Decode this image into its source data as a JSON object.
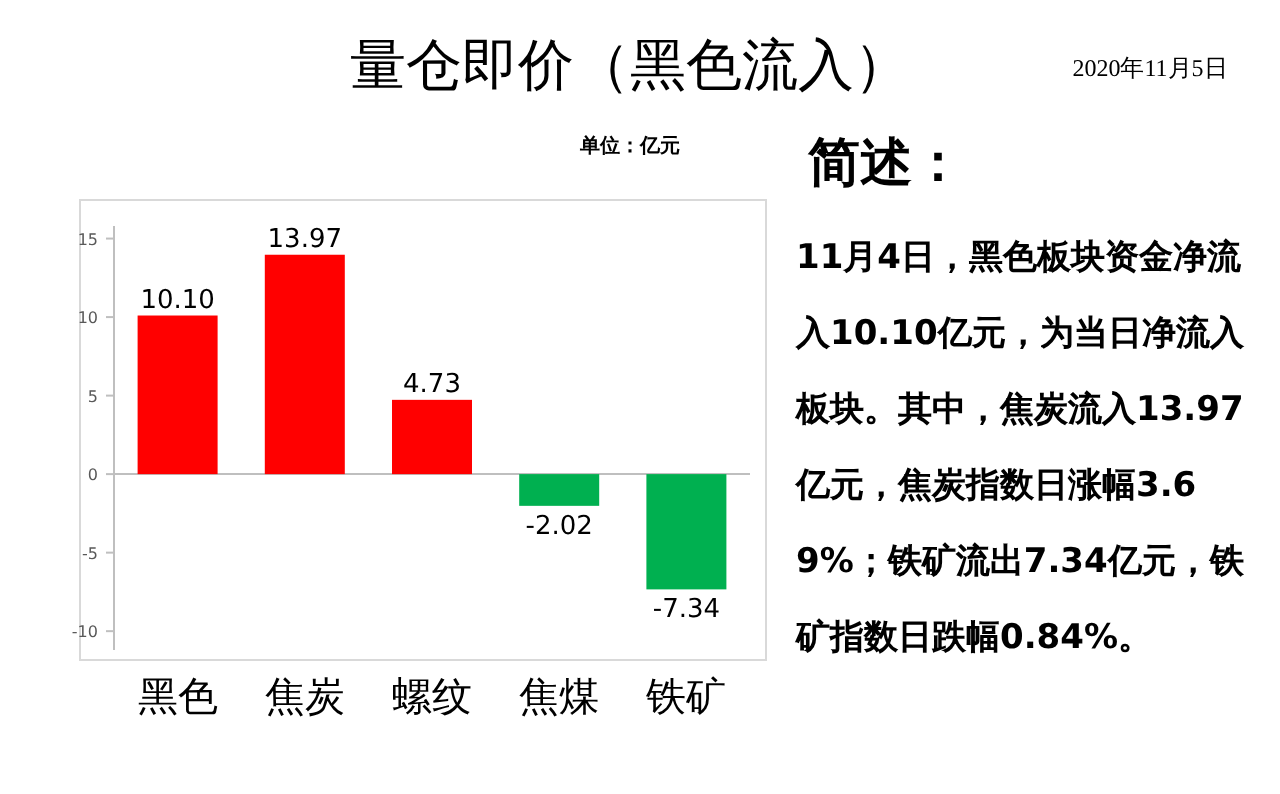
{
  "chart_data": [
    {
      "type": "bar",
      "title": "量仓即价（黑色流入）",
      "categories": [
        "黑色",
        "焦炭",
        "螺纹",
        "焦煤",
        "铁矿"
      ],
      "values": [
        10.1,
        13.97,
        4.73,
        -2.02,
        -7.34
      ],
      "colors": [
        "#ff0000",
        "#ff0000",
        "#ff0000",
        "#00b050",
        "#00b050"
      ],
      "value_labels": [
        "10.10",
        "13.97",
        "4.73",
        "-2.02",
        "-7.34"
      ],
      "ylim": [
        -11.2,
        15.8
      ],
      "yticks": [
        -10,
        -5,
        0,
        5,
        10,
        15
      ],
      "annotations": [
        "2020年11月5日",
        "单位：亿元"
      ]
    },
    {
      "type": "other",
      "title": "简述：",
      "annotations": [
        "11月4日，黑色板块资金净流入10.10亿元，为当日净流入板块。其中，焦炭流入13.97亿元，焦炭指数日涨幅3.69%；铁矿流出7.34亿元，铁矿指数日跌幅0.84%。"
      ]
    }
  ]
}
